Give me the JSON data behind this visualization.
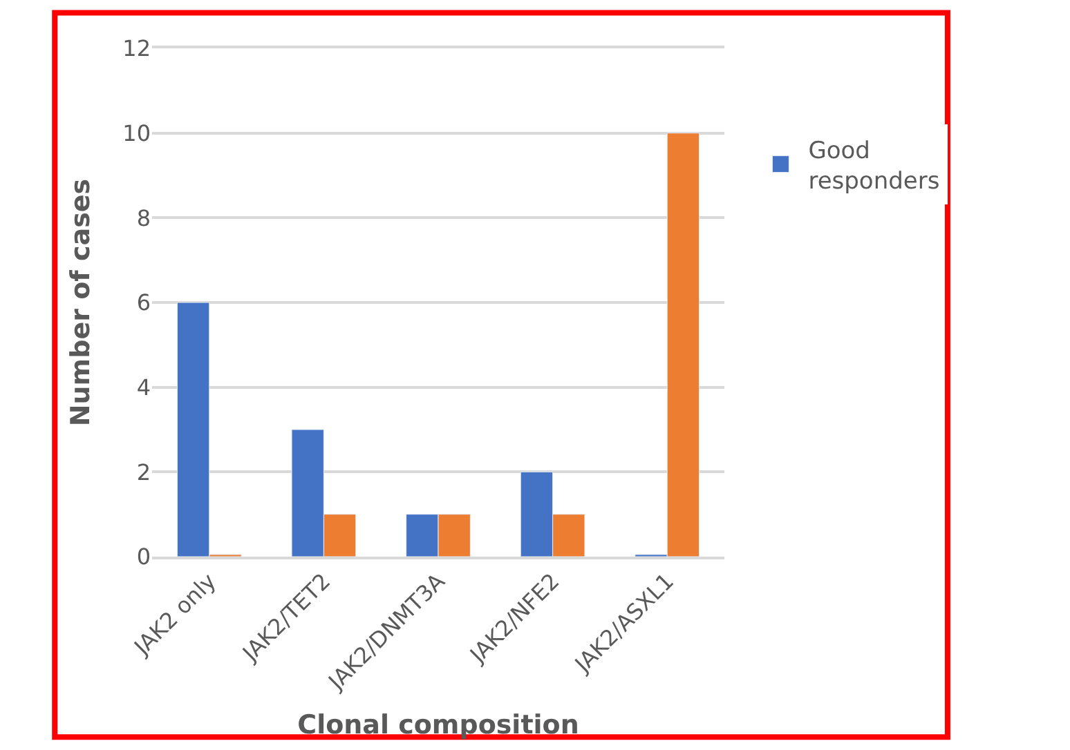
{
  "chart_data": {
    "type": "bar",
    "xlabel": "Clonal composition",
    "ylabel": "Number of cases",
    "categories": [
      "JAK2 only",
      "JAK2/TET2",
      "JAK2/DNMT3A",
      "JAK2/NFE2",
      "JAK2/ASXL1"
    ],
    "series": [
      {
        "name": "Good responders",
        "color": "#4472c4",
        "values": [
          6,
          3,
          1,
          2,
          0.05
        ]
      },
      {
        "color": "#ed7d31",
        "values": [
          0.05,
          1,
          1,
          1,
          10
        ]
      }
    ],
    "ylim": [
      0,
      12
    ],
    "yticks": [
      0,
      2,
      4,
      6,
      8,
      10,
      12
    ],
    "grid": "y",
    "legend": "right"
  }
}
